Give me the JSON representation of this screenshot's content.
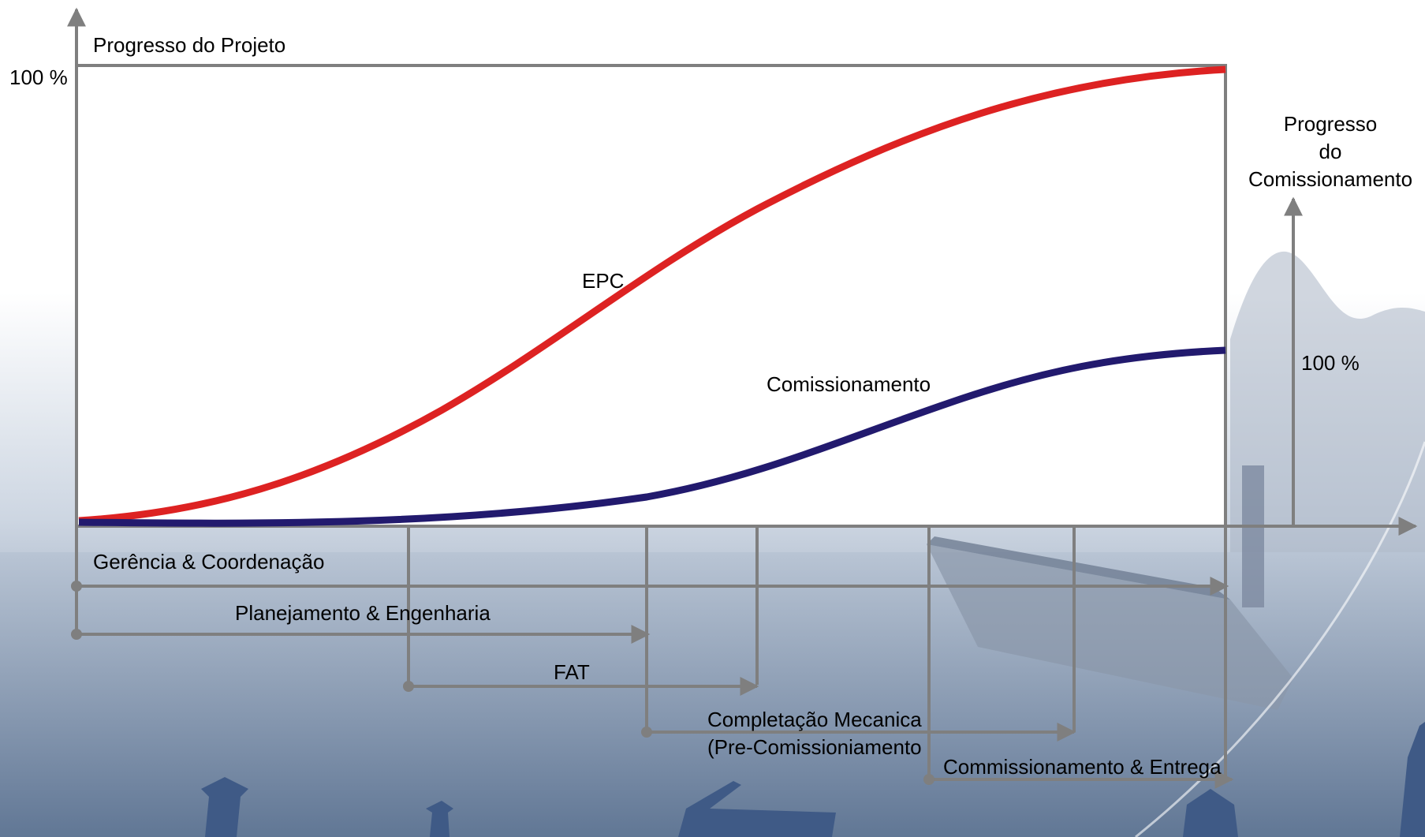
{
  "labels": {
    "y_axis_title": "Progresso do Projeto",
    "y_axis_max": "100 %",
    "right_axis_title_line1": "Progresso",
    "right_axis_title_line2": "do",
    "right_axis_title_line3": "Comissionamento",
    "right_axis_max": "100 %",
    "curve_epc": "EPC",
    "curve_commissioning": "Comissionamento"
  },
  "phases": [
    {
      "label": "Gerência & Coordenação"
    },
    {
      "label": "Planejamento & Engenharia"
    },
    {
      "label": "FAT"
    },
    {
      "label_line1": "Completação Mecanica",
      "label_line2": "(Pre-Comissioniamento"
    },
    {
      "label": "Commissionamento & Entrega"
    }
  ],
  "colors": {
    "epc_curve": "#dd2222",
    "commissioning_curve": "#221a6e",
    "axis": "#7f7f7f",
    "plot_area": "#ffffff",
    "background_top": "#ffffff",
    "background_bottom": "#5c6f8c"
  }
}
